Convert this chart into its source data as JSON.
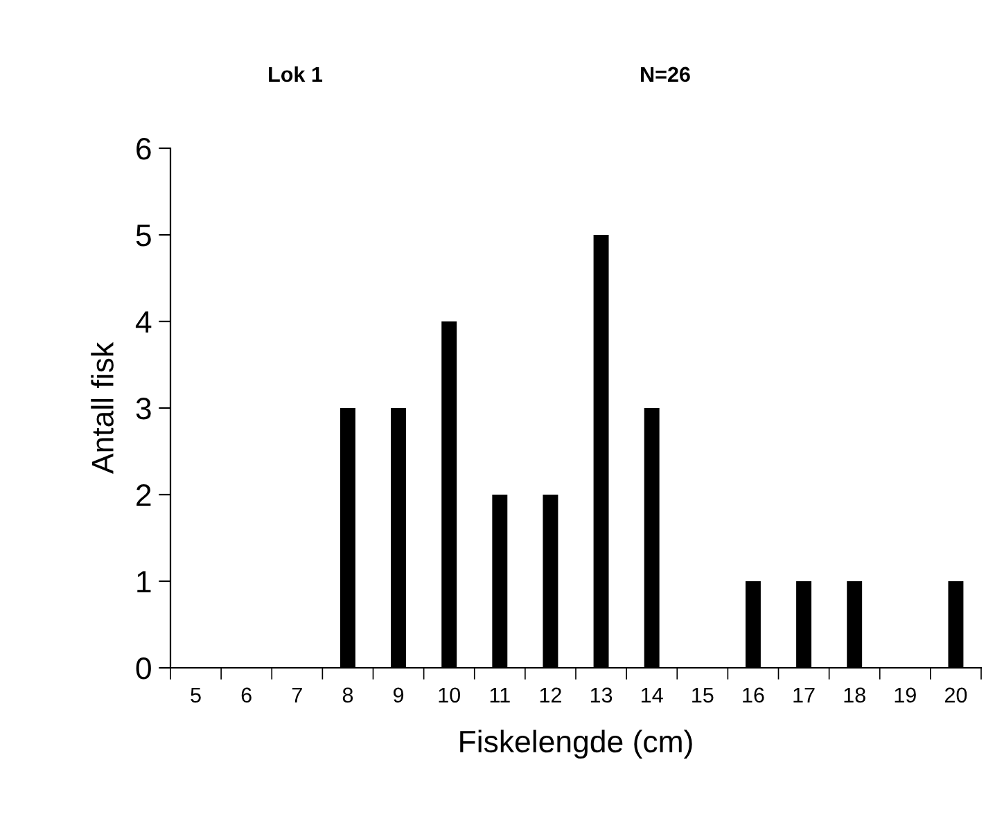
{
  "chart_data": {
    "type": "bar",
    "title": "Lok 1",
    "subtitle": "N=26",
    "xlabel": "Fiskelengde (cm)",
    "ylabel": "Antall fisk",
    "categories": [
      "5",
      "6",
      "7",
      "8",
      "9",
      "10",
      "11",
      "12",
      "13",
      "14",
      "15",
      "16",
      "17",
      "18",
      "19",
      "20"
    ],
    "values": [
      0,
      0,
      0,
      3,
      3,
      4,
      2,
      2,
      5,
      3,
      0,
      1,
      1,
      1,
      0,
      1
    ],
    "color": "#000000",
    "ylim": [
      0,
      6
    ],
    "yticks": [
      0,
      1,
      2,
      3,
      4,
      5,
      6
    ],
    "grid": false,
    "legend": false
  }
}
